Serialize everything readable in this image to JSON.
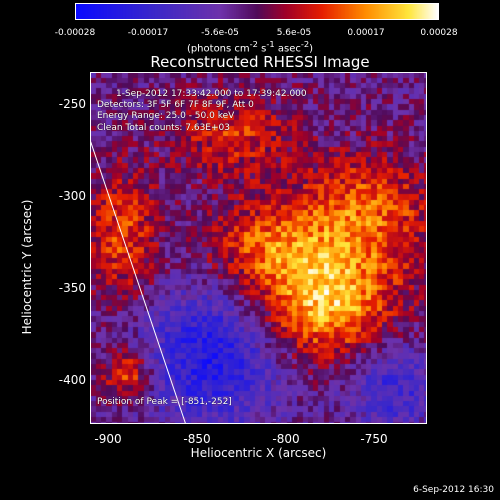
{
  "colorbar": {
    "ticks": [
      "-0.00028",
      "-0.00017",
      "-5.6e-05",
      "5.6e-05",
      "0.00017",
      "0.00028"
    ],
    "units_html": "(photons cm<sup>-2</sup> s<sup>-1</sup> asec<sup>-2</sup>)",
    "units_text": "(photons cm-2 s-1 asec-2)"
  },
  "title": "Reconstructed RHESSI Image",
  "annotations": {
    "time": "1-Sep-2012 17:33:42.000 to 17:39:42.000",
    "detectors": "Detectors: 3F 5F 6F 7F 8F 9F, Att 0",
    "energy": "Energy Range: 25.0 - 50.0 keV",
    "clean": "Clean     Total counts: 7.63E+03",
    "peak": "Position of Peak = [-851,-252]"
  },
  "axes": {
    "xlabel": "Heliocentric X (arcsec)",
    "ylabel": "Heliocentric Y (arcsec)",
    "xticks": [
      "-900",
      "-850",
      "-800",
      "-750"
    ],
    "yticks": [
      "-250",
      "-300",
      "-350",
      "-400"
    ],
    "xlim": [
      -915,
      -725
    ],
    "ylim": [
      -425,
      -232
    ]
  },
  "footer": "6-Sep-2012 16:30"
}
